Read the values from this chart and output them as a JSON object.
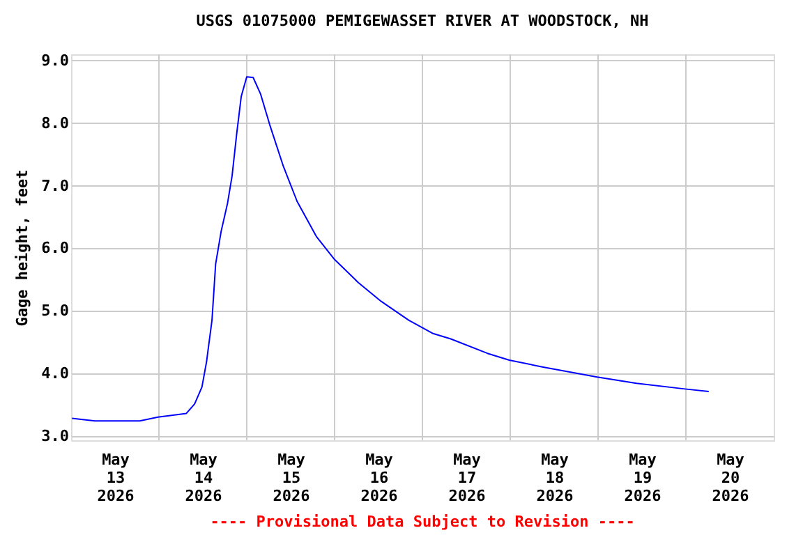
{
  "chart_data": {
    "type": "line",
    "title": "USGS 01075000 PEMIGEWASSET RIVER AT WOODSTOCK, NH",
    "ylabel": "Gage height, feet",
    "annotations": [
      "---- Provisional Data Subject to Revision ----"
    ],
    "x": [
      "2026-05-13T00:15",
      "2026-05-13T06:30",
      "2026-05-13T18:45",
      "2026-05-13T23:45",
      "2026-05-14T07:30",
      "2026-05-14T09:45",
      "2026-05-14T11:45",
      "2026-05-14T13:00",
      "2026-05-14T14:30",
      "2026-05-14T15:30",
      "2026-05-14T17:00",
      "2026-05-14T18:45",
      "2026-05-14T20:00",
      "2026-05-14T21:15",
      "2026-05-14T22:30",
      "2026-05-15T00:00",
      "2026-05-15T01:45",
      "2026-05-15T03:45",
      "2026-05-15T06:15",
      "2026-05-15T10:00",
      "2026-05-15T13:45",
      "2026-05-15T19:00",
      "2026-05-16T00:00",
      "2026-05-16T06:30",
      "2026-05-16T12:45",
      "2026-05-16T20:15",
      "2026-05-17T02:45",
      "2026-05-17T07:45",
      "2026-05-17T17:45",
      "2026-05-17T23:45",
      "2026-05-18T09:00",
      "2026-05-18T23:45",
      "2026-05-19T10:30",
      "2026-05-19T23:45",
      "2026-05-20T06:15"
    ],
    "series": [
      {
        "color": "#0000ff",
        "values": [
          3.28,
          3.24,
          3.24,
          3.3,
          3.36,
          3.51,
          3.78,
          4.18,
          4.85,
          5.75,
          6.27,
          6.72,
          7.16,
          7.83,
          8.43,
          8.74,
          8.73,
          8.47,
          7.98,
          7.31,
          6.75,
          6.19,
          5.82,
          5.45,
          5.15,
          4.85,
          4.64,
          4.55,
          4.32,
          4.21,
          4.1,
          3.94,
          3.84,
          3.75,
          3.71
        ]
      }
    ],
    "xlim": [
      "2026-05-13T00:00",
      "2026-05-21T00:00"
    ],
    "xticks": [
      {
        "value": "2026-05-13T12:00",
        "label": "May\n13\n2026"
      },
      {
        "value": "2026-05-14T12:00",
        "label": "May\n14\n2026"
      },
      {
        "value": "2026-05-15T12:00",
        "label": "May\n15\n2026"
      },
      {
        "value": "2026-05-16T12:00",
        "label": "May\n16\n2026"
      },
      {
        "value": "2026-05-17T12:00",
        "label": "May\n17\n2026"
      },
      {
        "value": "2026-05-18T12:00",
        "label": "May\n18\n2026"
      },
      {
        "value": "2026-05-19T12:00",
        "label": "May\n19\n2026"
      },
      {
        "value": "2026-05-20T12:00",
        "label": "May\n20\n2026"
      },
      {
        "value": "2026-05-14T00:00",
        "label": null
      },
      {
        "value": "2026-05-15T00:00",
        "label": null
      },
      {
        "value": "2026-05-16T00:00",
        "label": null
      },
      {
        "value": "2026-05-17T00:00",
        "label": null
      },
      {
        "value": "2026-05-18T00:00",
        "label": null
      },
      {
        "value": "2026-05-19T00:00",
        "label": null
      },
      {
        "value": "2026-05-20T00:00",
        "label": null
      }
    ],
    "ylim": [
      2.93,
      9.1
    ],
    "yticks": [
      {
        "value": 3,
        "label": "3.0"
      },
      {
        "value": 4,
        "label": "4.0"
      },
      {
        "value": 5,
        "label": "5.0"
      },
      {
        "value": 6,
        "label": "6.0"
      },
      {
        "value": 7,
        "label": "7.0"
      },
      {
        "value": 8,
        "label": "8.0"
      },
      {
        "value": 9,
        "label": "9.0"
      }
    ],
    "grid": true,
    "marker": "none",
    "line_style": "solid"
  }
}
